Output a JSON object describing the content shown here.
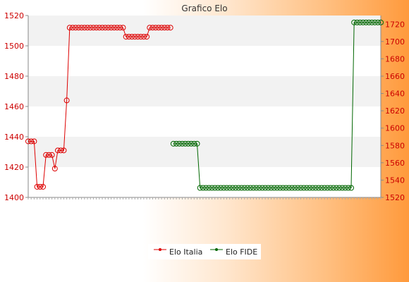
{
  "chart_data": {
    "type": "line",
    "title": "Grafico Elo",
    "colors": {
      "italia": "#dd0000",
      "fide": "#006600",
      "axis_left": "#cc0000",
      "axis_right": "#cc0000"
    },
    "grid": true,
    "legend_placement": "bottom-center",
    "left_axis": {
      "ylim": [
        1400,
        1520
      ],
      "ticks": [
        "1400",
        "1420",
        "1440",
        "1460",
        "1480",
        "1500",
        "1520"
      ]
    },
    "right_axis": {
      "ylim": [
        1520,
        1730
      ],
      "ticks": [
        "1520",
        "1540",
        "1560",
        "1580",
        "1600",
        "1620",
        "1640",
        "1660",
        "1680",
        "1700",
        "1720"
      ]
    },
    "x_count": 120,
    "series": [
      {
        "name": "Elo Italia",
        "axis": "left",
        "points": [
          {
            "x": 1,
            "y": 1437
          },
          {
            "x": 2,
            "y": 1437
          },
          {
            "x": 3,
            "y": 1437
          },
          {
            "x": 4,
            "y": 1407
          },
          {
            "x": 5,
            "y": 1407
          },
          {
            "x": 6,
            "y": 1407
          },
          {
            "x": 7,
            "y": 1428
          },
          {
            "x": 8,
            "y": 1428
          },
          {
            "x": 9,
            "y": 1428
          },
          {
            "x": 10,
            "y": 1419
          },
          {
            "x": 11,
            "y": 1431
          },
          {
            "x": 12,
            "y": 1431
          },
          {
            "x": 13,
            "y": 1431
          },
          {
            "x": 14,
            "y": 1464
          },
          {
            "x": 15,
            "y": 1512
          },
          {
            "x": 16,
            "y": 1512
          },
          {
            "x": 17,
            "y": 1512
          },
          {
            "x": 18,
            "y": 1512
          },
          {
            "x": 19,
            "y": 1512
          },
          {
            "x": 20,
            "y": 1512
          },
          {
            "x": 21,
            "y": 1512
          },
          {
            "x": 22,
            "y": 1512
          },
          {
            "x": 23,
            "y": 1512
          },
          {
            "x": 24,
            "y": 1512
          },
          {
            "x": 25,
            "y": 1512
          },
          {
            "x": 26,
            "y": 1512
          },
          {
            "x": 27,
            "y": 1512
          },
          {
            "x": 28,
            "y": 1512
          },
          {
            "x": 29,
            "y": 1512
          },
          {
            "x": 30,
            "y": 1512
          },
          {
            "x": 31,
            "y": 1512
          },
          {
            "x": 32,
            "y": 1512
          },
          {
            "x": 33,
            "y": 1512
          },
          {
            "x": 34,
            "y": 1506
          },
          {
            "x": 35,
            "y": 1506
          },
          {
            "x": 36,
            "y": 1506
          },
          {
            "x": 37,
            "y": 1506
          },
          {
            "x": 38,
            "y": 1506
          },
          {
            "x": 39,
            "y": 1506
          },
          {
            "x": 40,
            "y": 1506
          },
          {
            "x": 41,
            "y": 1506
          },
          {
            "x": 42,
            "y": 1512
          },
          {
            "x": 43,
            "y": 1512
          },
          {
            "x": 44,
            "y": 1512
          },
          {
            "x": 45,
            "y": 1512
          },
          {
            "x": 46,
            "y": 1512
          },
          {
            "x": 47,
            "y": 1512
          },
          {
            "x": 48,
            "y": 1512
          },
          {
            "x": 49,
            "y": 1512
          }
        ]
      },
      {
        "name": "Elo FIDE",
        "axis": "right",
        "points": [
          {
            "x": 50,
            "y": 1582
          },
          {
            "x": 51,
            "y": 1582
          },
          {
            "x": 52,
            "y": 1582
          },
          {
            "x": 53,
            "y": 1582
          },
          {
            "x": 54,
            "y": 1582
          },
          {
            "x": 55,
            "y": 1582
          },
          {
            "x": 56,
            "y": 1582
          },
          {
            "x": 57,
            "y": 1582
          },
          {
            "x": 58,
            "y": 1582
          },
          {
            "x": 59,
            "y": 1531
          },
          {
            "x": 60,
            "y": 1531
          },
          {
            "x": 61,
            "y": 1531
          },
          {
            "x": 62,
            "y": 1531
          },
          {
            "x": 63,
            "y": 1531
          },
          {
            "x": 64,
            "y": 1531
          },
          {
            "x": 65,
            "y": 1531
          },
          {
            "x": 66,
            "y": 1531
          },
          {
            "x": 67,
            "y": 1531
          },
          {
            "x": 68,
            "y": 1531
          },
          {
            "x": 69,
            "y": 1531
          },
          {
            "x": 70,
            "y": 1531
          },
          {
            "x": 71,
            "y": 1531
          },
          {
            "x": 72,
            "y": 1531
          },
          {
            "x": 73,
            "y": 1531
          },
          {
            "x": 74,
            "y": 1531
          },
          {
            "x": 75,
            "y": 1531
          },
          {
            "x": 76,
            "y": 1531
          },
          {
            "x": 77,
            "y": 1531
          },
          {
            "x": 78,
            "y": 1531
          },
          {
            "x": 79,
            "y": 1531
          },
          {
            "x": 80,
            "y": 1531
          },
          {
            "x": 81,
            "y": 1531
          },
          {
            "x": 82,
            "y": 1531
          },
          {
            "x": 83,
            "y": 1531
          },
          {
            "x": 84,
            "y": 1531
          },
          {
            "x": 85,
            "y": 1531
          },
          {
            "x": 86,
            "y": 1531
          },
          {
            "x": 87,
            "y": 1531
          },
          {
            "x": 88,
            "y": 1531
          },
          {
            "x": 89,
            "y": 1531
          },
          {
            "x": 90,
            "y": 1531
          },
          {
            "x": 91,
            "y": 1531
          },
          {
            "x": 92,
            "y": 1531
          },
          {
            "x": 93,
            "y": 1531
          },
          {
            "x": 94,
            "y": 1531
          },
          {
            "x": 95,
            "y": 1531
          },
          {
            "x": 96,
            "y": 1531
          },
          {
            "x": 97,
            "y": 1531
          },
          {
            "x": 98,
            "y": 1531
          },
          {
            "x": 99,
            "y": 1531
          },
          {
            "x": 100,
            "y": 1531
          },
          {
            "x": 101,
            "y": 1531
          },
          {
            "x": 102,
            "y": 1531
          },
          {
            "x": 103,
            "y": 1531
          },
          {
            "x": 104,
            "y": 1531
          },
          {
            "x": 105,
            "y": 1531
          },
          {
            "x": 106,
            "y": 1531
          },
          {
            "x": 107,
            "y": 1531
          },
          {
            "x": 108,
            "y": 1531
          },
          {
            "x": 109,
            "y": 1531
          },
          {
            "x": 110,
            "y": 1531
          },
          {
            "x": 111,
            "y": 1722
          },
          {
            "x": 112,
            "y": 1722
          },
          {
            "x": 113,
            "y": 1722
          },
          {
            "x": 114,
            "y": 1722
          },
          {
            "x": 115,
            "y": 1722
          },
          {
            "x": 116,
            "y": 1722
          },
          {
            "x": 117,
            "y": 1722
          },
          {
            "x": 118,
            "y": 1722
          },
          {
            "x": 119,
            "y": 1722
          },
          {
            "x": 120,
            "y": 1722
          }
        ]
      }
    ]
  }
}
